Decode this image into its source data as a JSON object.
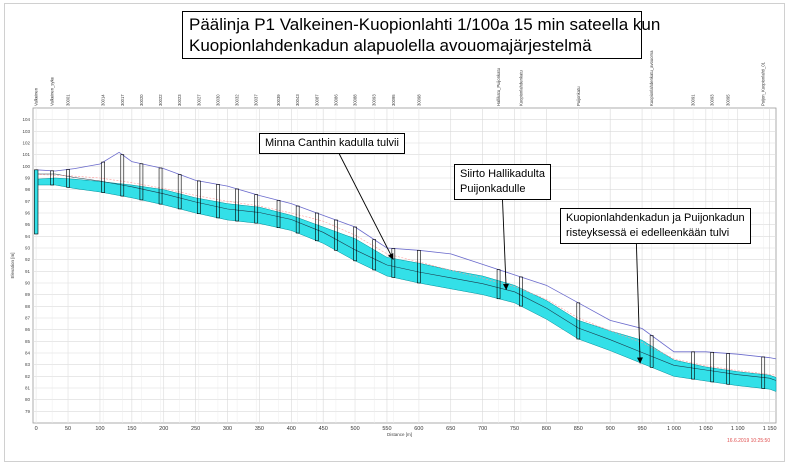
{
  "title": {
    "line1": "Päälinja P1 Valkeinen-Kuopionlahti 1/100a 15 min sateella kun",
    "line2": "Kuopionlahdenkadun alapuolella avouomajärjestelmä"
  },
  "annotations": [
    {
      "text": [
        "Minna Canthin kadulla tulvii"
      ],
      "target": [
        560,
        92.0
      ]
    },
    {
      "text": [
        "Siirto Hallikadulta",
        "Puijonkadulle"
      ],
      "target": [
        737,
        89.4
      ]
    },
    {
      "text": [
        "Kuopionlahdenkadun ja Puijonkadun",
        "risteyksessä ei edelleenkään tulvi"
      ],
      "target": [
        947,
        83.1
      ]
    }
  ],
  "footer_text": "16.6.2019 10:25:50",
  "chart_data": {
    "type": "area",
    "xlabel": "Distance [m]",
    "ylabel": "Elevation [m]",
    "xlim": [
      -5,
      1160
    ],
    "ylim": [
      78,
      105
    ],
    "x_ticks": [
      0,
      50,
      100,
      150,
      200,
      250,
      300,
      350,
      400,
      450,
      500,
      550,
      600,
      650,
      700,
      750,
      800,
      850,
      900,
      950,
      1000,
      1050,
      1100,
      1150
    ],
    "x_tick_labels": [
      "0",
      "50",
      "100",
      "150",
      "200",
      "250",
      "300",
      "350",
      "400",
      "450",
      "500",
      "550",
      "600",
      "650",
      "700",
      "750",
      "800",
      "850",
      "900",
      "950",
      "1 000",
      "1 050",
      "1 100",
      "1 150"
    ],
    "y_ticks": [
      79,
      80,
      81,
      82,
      83,
      84,
      85,
      86,
      87,
      88,
      89,
      90,
      91,
      92,
      93,
      94,
      95,
      96,
      97,
      98,
      99,
      100,
      101,
      102,
      103,
      104
    ],
    "node_labels": [
      "Valkeinen",
      "Valkeinen_syke",
      "30001",
      "30014",
      "30017",
      "30020",
      "30022",
      "30023",
      "30027",
      "30030",
      "30032",
      "30037",
      "30039",
      "30043",
      "30087",
      "30086",
      "30088",
      "30093",
      "30095",
      "30098",
      "Hallikatu_Puijonkatu",
      "Kuopionlahdenkatu",
      "Puijonkatu",
      "Kuopionlahdenkatu_avouoma",
      "30091",
      "30093",
      "30095",
      "Puijon_Kuopionlahti_01"
    ],
    "node_x": [
      0,
      25,
      50,
      105,
      135,
      165,
      195,
      225,
      255,
      285,
      315,
      345,
      380,
      410,
      440,
      470,
      500,
      530,
      560,
      600,
      725,
      760,
      850,
      965,
      1030,
      1060,
      1085,
      1140
    ],
    "series": [
      {
        "name": "pipe_bottom",
        "x": [
          0,
          30,
          60,
          100,
          150,
          200,
          250,
          300,
          350,
          400,
          450,
          500,
          550,
          600,
          650,
          700,
          750,
          800,
          850,
          900,
          950,
          1000,
          1050,
          1100,
          1150,
          1160
        ],
        "y": [
          98.4,
          98.4,
          98.1,
          97.8,
          97.3,
          96.7,
          96.0,
          95.4,
          95.1,
          94.5,
          93.4,
          91.9,
          90.6,
          90.0,
          89.5,
          89.0,
          88.3,
          86.9,
          85.2,
          84.2,
          83.1,
          82.0,
          81.6,
          81.2,
          80.9,
          80.7
        ]
      },
      {
        "name": "water_level",
        "x": [
          0,
          30,
          60,
          100,
          150,
          200,
          250,
          300,
          350,
          400,
          450,
          500,
          550,
          600,
          650,
          700,
          750,
          800,
          850,
          900,
          950,
          1000,
          1050,
          1100,
          1150,
          1160
        ],
        "y": [
          98.9,
          99.0,
          98.9,
          98.7,
          98.4,
          98.0,
          97.3,
          96.8,
          96.5,
          95.8,
          94.8,
          93.8,
          92.2,
          91.7,
          91.1,
          90.6,
          89.8,
          88.5,
          86.8,
          85.9,
          85.1,
          83.4,
          82.8,
          82.4,
          82.1,
          81.9
        ]
      },
      {
        "name": "ground_level",
        "x": [
          0,
          30,
          60,
          100,
          130,
          150,
          200,
          250,
          300,
          350,
          400,
          450,
          500,
          550,
          600,
          650,
          700,
          750,
          800,
          850,
          900,
          950,
          1000,
          1050,
          1100,
          1150,
          1160
        ],
        "y": [
          99.7,
          99.6,
          99.8,
          100.2,
          101.2,
          100.4,
          99.8,
          98.8,
          98.3,
          97.5,
          96.8,
          95.8,
          94.8,
          93.0,
          92.8,
          92.5,
          91.6,
          90.7,
          89.8,
          88.3,
          86.8,
          86.1,
          84.1,
          84.1,
          83.9,
          83.6,
          83.5
        ]
      },
      {
        "name": "energy_line",
        "x": [
          0,
          50,
          100,
          150,
          200,
          250,
          300,
          350,
          400,
          450,
          500,
          550,
          600,
          650,
          700,
          750,
          800,
          850,
          900,
          950,
          1000,
          1050,
          1100,
          1160
        ],
        "y": [
          99.3,
          99.2,
          99.0,
          98.6,
          98.1,
          97.5,
          97.0,
          96.6,
          96.0,
          95.3,
          94.1,
          92.5,
          91.8,
          91.1,
          90.4,
          89.7,
          88.6,
          87.0,
          85.9,
          84.9,
          83.5,
          82.9,
          82.5,
          82.1
        ]
      }
    ],
    "colors": {
      "water": "#33e0e8",
      "water_edge": "#00909a",
      "pipe": "#000000",
      "ground": "#6a6acc",
      "grid": "#d9d9d9",
      "energy": "#ff9a9a"
    }
  }
}
